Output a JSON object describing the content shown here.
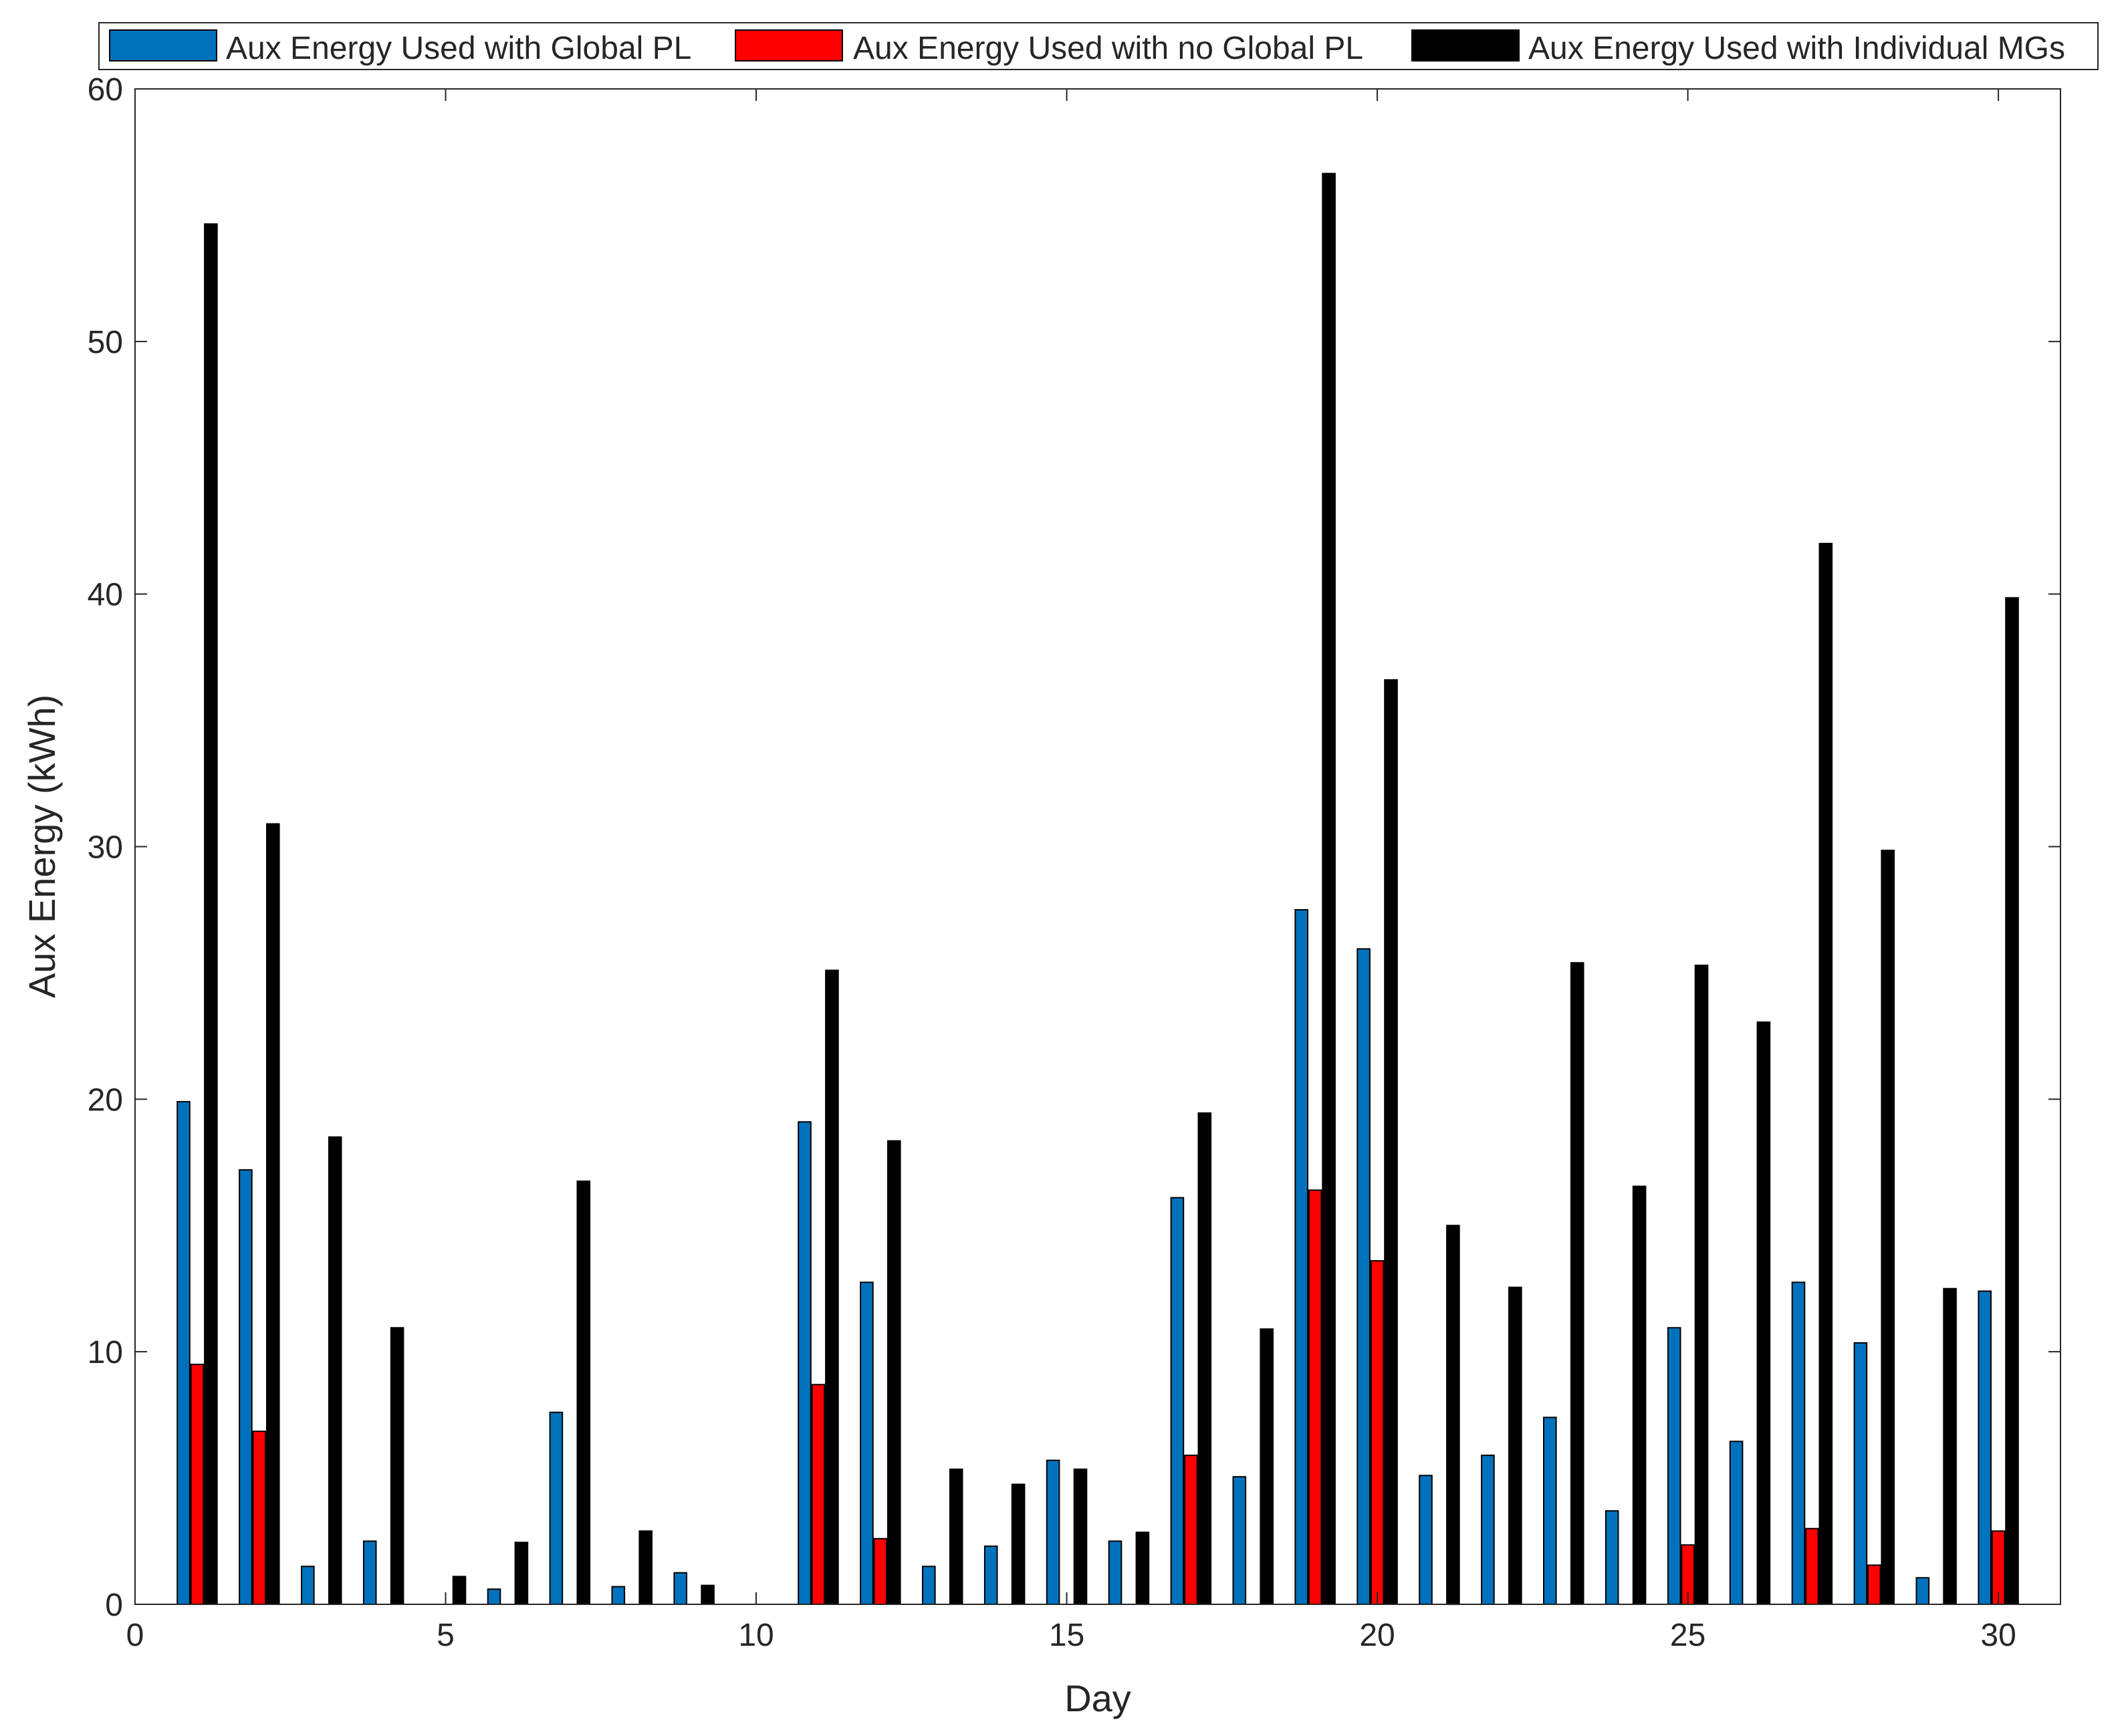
{
  "chart_data": {
    "type": "bar",
    "title": "",
    "xlabel": "Day",
    "ylabel": "Aux Energy (kWh)",
    "xlim": [
      0,
      31
    ],
    "ylim": [
      0,
      60
    ],
    "x_ticks": [
      "0",
      "5",
      "10",
      "15",
      "20",
      "25",
      "30"
    ],
    "y_ticks": [
      "0",
      "10",
      "20",
      "30",
      "40",
      "50",
      "60"
    ],
    "grid": false,
    "legend_position": "top-outside",
    "categories": [
      1,
      2,
      3,
      4,
      5,
      6,
      7,
      8,
      9,
      10,
      11,
      12,
      13,
      14,
      15,
      16,
      17,
      18,
      19,
      20,
      21,
      22,
      23,
      24,
      25,
      26,
      27,
      28,
      29,
      30
    ],
    "series": [
      {
        "name": "Aux Energy Used with Global PL",
        "color": "#0072BD",
        "values": [
          19.9,
          17.2,
          1.5,
          2.5,
          0.0,
          0.6,
          7.6,
          0.7,
          1.25,
          0.0,
          19.1,
          12.75,
          1.5,
          2.3,
          5.7,
          2.5,
          16.1,
          5.05,
          27.5,
          25.95,
          5.1,
          5.9,
          7.4,
          3.7,
          10.95,
          6.45,
          12.75,
          10.35,
          1.05,
          12.4
        ]
      },
      {
        "name": "Aux Energy Used with no Global PL",
        "color": "#FF0000",
        "values": [
          9.5,
          6.85,
          0,
          0,
          0,
          0,
          0,
          0,
          0,
          0,
          8.7,
          2.6,
          0,
          0,
          0,
          0,
          5.9,
          0,
          16.4,
          13.6,
          0,
          0,
          0,
          0,
          2.35,
          0,
          3.0,
          1.55,
          0,
          2.9
        ]
      },
      {
        "name": "Aux Energy Used with Individual MGs",
        "color": "#000000",
        "values": [
          54.65,
          30.9,
          18.5,
          10.95,
          1.1,
          2.45,
          16.75,
          2.9,
          0.75,
          0.0,
          25.1,
          18.35,
          5.35,
          4.75,
          5.35,
          2.85,
          19.45,
          10.9,
          56.65,
          36.6,
          15.0,
          12.55,
          25.4,
          16.55,
          25.3,
          23.05,
          42.0,
          29.85,
          12.5,
          39.85
        ]
      }
    ]
  }
}
